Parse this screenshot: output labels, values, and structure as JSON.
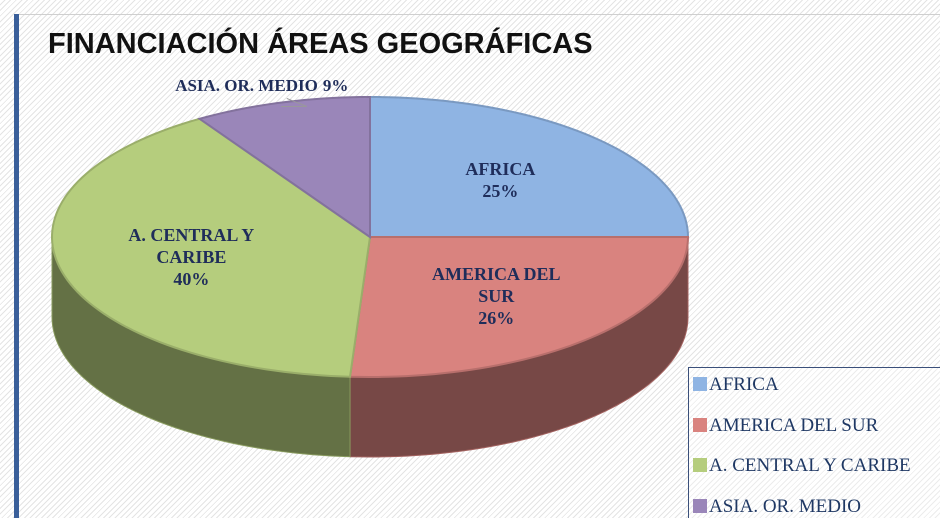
{
  "chart_data": {
    "type": "pie",
    "title": "FINANCIACIÓN ÁREAS GEOGRÁFICAS",
    "categories": [
      "AFRICA",
      "AMERICA DEL SUR",
      "A. CENTRAL Y CARIBE",
      "ASIA. OR. MEDIO"
    ],
    "values": [
      25,
      26,
      40,
      9
    ],
    "value_labels": [
      "25%",
      "26%",
      "40%",
      "9%"
    ],
    "colors": [
      "#8fb4e3",
      "#d9837f",
      "#b5cd7d",
      "#9a86b9"
    ],
    "legend": "bottom-right"
  }
}
